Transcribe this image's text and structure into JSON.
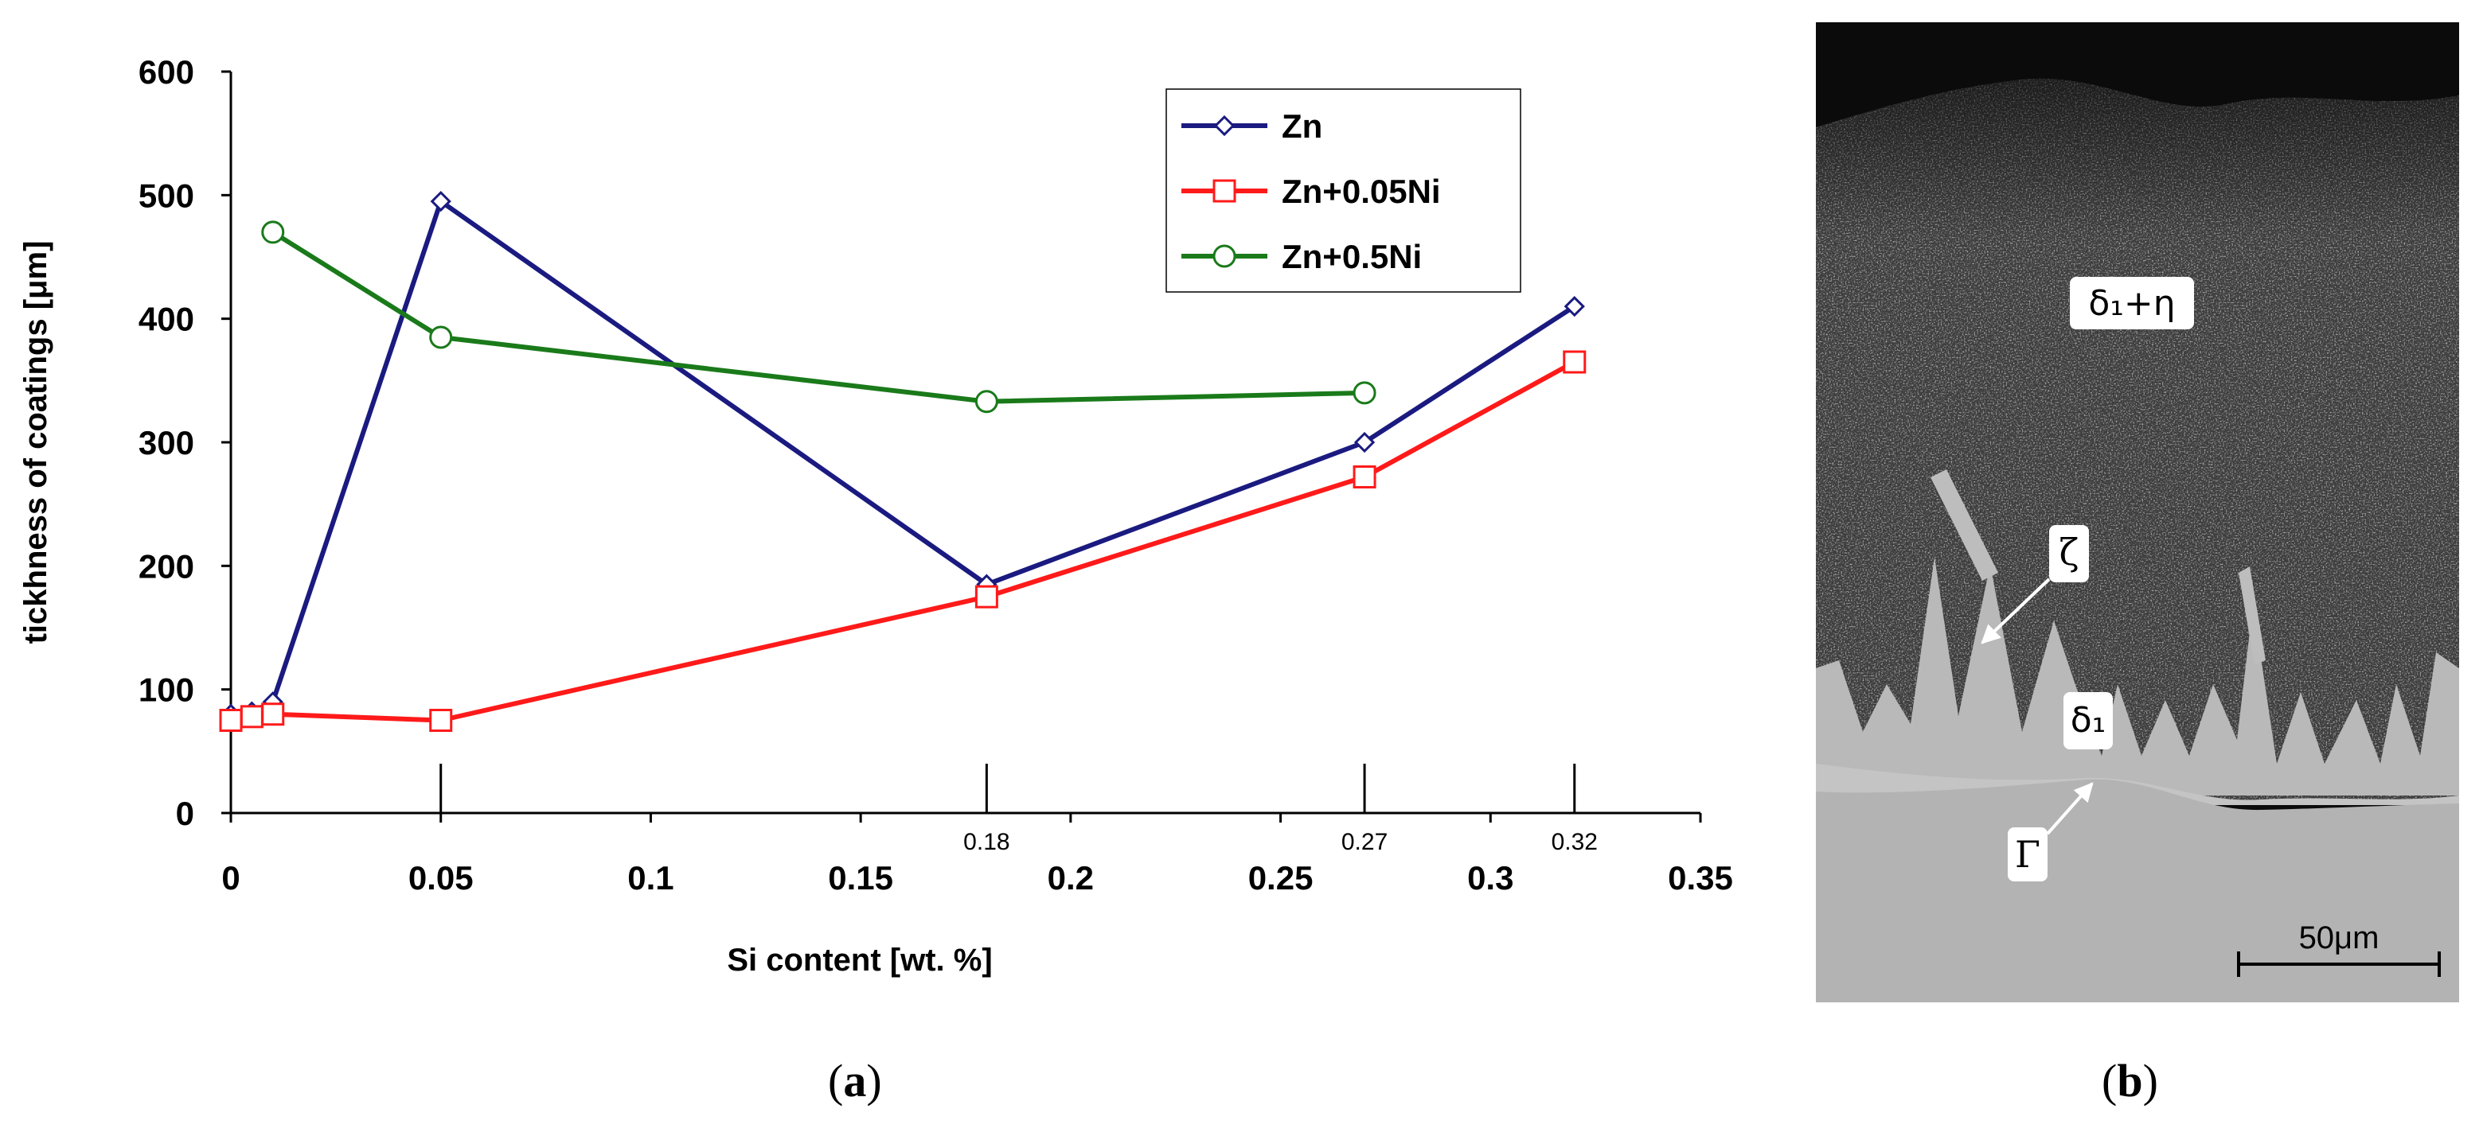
{
  "chart_data": {
    "type": "line",
    "ylabel": "tickhness of coatings [μm]",
    "xlabel": "Si content [wt. %]",
    "xlim": [
      0,
      0.35
    ],
    "ylim": [
      0,
      600
    ],
    "x_ticks": [
      0,
      0.05,
      0.1,
      0.15,
      0.2,
      0.25,
      0.3,
      0.35
    ],
    "x_tick_labels": [
      "0",
      "0.05",
      "0.1",
      "0.15",
      "0.2",
      "0.25",
      "0.3",
      "0.35"
    ],
    "y_ticks": [
      0,
      100,
      200,
      300,
      400,
      500,
      600
    ],
    "y_tick_labels": [
      "0",
      "100",
      "200",
      "300",
      "400",
      "500",
      "600"
    ],
    "annotation_ticks": [
      {
        "x": 0.18,
        "label": "0.18"
      },
      {
        "x": 0.27,
        "label": "0.27"
      },
      {
        "x": 0.32,
        "label": "0.32"
      }
    ],
    "reference_lines": [
      0.05,
      0.18,
      0.27,
      0.32
    ],
    "legend_position": "top-right",
    "series": [
      {
        "name": "Zn",
        "color": "#1a1a80",
        "marker": "diamond",
        "x": [
          0,
          0.005,
          0.01,
          0.05,
          0.18,
          0.27,
          0.32
        ],
        "y": [
          80,
          82,
          90,
          495,
          185,
          300,
          410
        ]
      },
      {
        "name": "Zn+0.05Ni",
        "color": "#ff1a1a",
        "marker": "square",
        "x": [
          0,
          0.005,
          0.01,
          0.05,
          0.18,
          0.27,
          0.32
        ],
        "y": [
          75,
          78,
          80,
          75,
          175,
          272,
          365
        ]
      },
      {
        "name": "Zn+0.5Ni",
        "color": "#1a7a1a",
        "marker": "circle",
        "x": [
          0.01,
          0.05,
          0.18,
          0.27
        ],
        "y": [
          470,
          385,
          333,
          340
        ]
      }
    ]
  },
  "micrograph": {
    "labels": {
      "delta1_eta": "δ₁+η",
      "zeta": "ζ",
      "delta1": "δ₁",
      "gamma": "Γ"
    },
    "scale_bar": "50μm"
  },
  "panels": {
    "a": {
      "open": "(",
      "letter": "a",
      "close": ")"
    },
    "b": {
      "open": "(",
      "letter": "b",
      "close": ")"
    }
  }
}
